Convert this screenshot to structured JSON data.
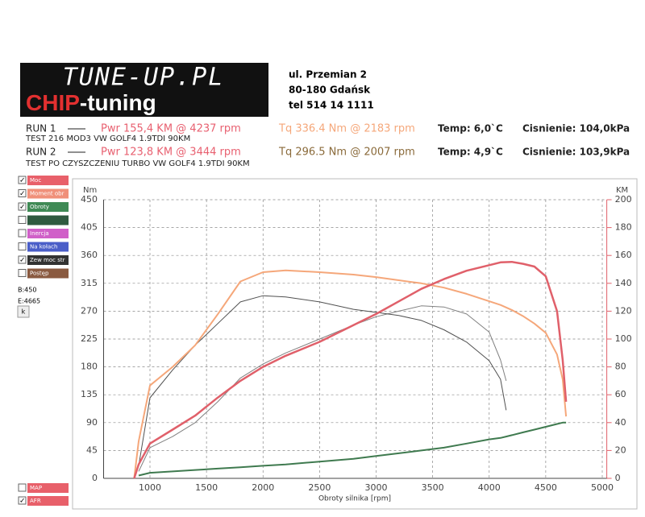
{
  "header": {
    "logo_top": "TUNE-UP.PL",
    "logo_chip": "CHIP",
    "logo_tuning": "-tuning",
    "address": [
      "ul. Przemian 2",
      "80-180 Gdańsk",
      "tel 514 14 1111"
    ]
  },
  "runs": [
    {
      "run": "RUN 1",
      "pwr": "Pwr 155,4 KM @ 4237 rpm",
      "tq": "Tq 336.4 Nm @ 2183 rpm",
      "temp": "Temp: 6,0`C",
      "pressure": "Cisnienie: 104,0kPa",
      "desc": "TEST 216 MOD3 VW GOLF4 1.9TDI 90KM"
    },
    {
      "run": "RUN 2",
      "pwr": "Pwr 123,8 KM @ 3444 rpm",
      "tq": "Tq 296.5 Nm @ 2007 rpm",
      "temp": "Temp: 4,9`C",
      "pressure": "Cisnienie: 103,9kPa",
      "desc": "TEST PO CZYSZCZENIU TURBO VW GOLF4 1.9TDI 90KM"
    }
  ],
  "sidebar": {
    "items": [
      {
        "label": "Moc",
        "color": "#e8606a",
        "checked": true
      },
      {
        "label": "Moment obr",
        "color": "#f0907a",
        "checked": true
      },
      {
        "label": "Obroty",
        "color": "#3f8a55",
        "checked": true
      },
      {
        "color": "#2f5a40",
        "checked": false
      },
      {
        "label": "Inercja",
        "color": "#d060c8",
        "checked": false
      },
      {
        "label": "Na kołach",
        "color": "#4a5ec8",
        "checked": false
      },
      {
        "label": "Zew moc str",
        "color": "#333333",
        "checked": true
      },
      {
        "label": "Postęp",
        "color": "#8a5a40",
        "checked": false
      }
    ],
    "b": "B:450",
    "e": "E:4665",
    "button": "k",
    "bottom": [
      {
        "label": "MAP",
        "color": "#e8606a",
        "checked": false
      },
      {
        "label": "AFR",
        "color": "#e8606a",
        "checked": true
      }
    ]
  },
  "chart_data": {
    "type": "line",
    "ylabel": "Nm",
    "y2label": "KM",
    "xlabel": "Obroty silnika [rpm]",
    "x": [
      860,
      900,
      1000,
      1200,
      1400,
      1600,
      1800,
      2000,
      2200,
      2500,
      2800,
      3000,
      3200,
      3400,
      3600,
      3800,
      4000,
      4100,
      4150,
      4200,
      4300,
      4400,
      4500,
      4600,
      4650,
      4680
    ],
    "xlim": [
      590,
      5040
    ],
    "xticks": [
      1000,
      1500,
      2000,
      2500,
      3000,
      3500,
      4000,
      4500,
      5000
    ],
    "ylim": [
      0,
      450
    ],
    "yticks": [
      0,
      45,
      90,
      135,
      180,
      225,
      270,
      315,
      360,
      405,
      450
    ],
    "y2lim": [
      0,
      200
    ],
    "y2ticks": [
      0,
      20,
      40,
      60,
      80,
      100,
      120,
      140,
      160,
      180,
      200
    ],
    "grid": true,
    "series": [
      {
        "color": "#808080",
        "width": 1,
        "axis": "y2",
        "values": [
          null,
          5,
          22,
          30,
          40,
          55,
          72,
          82,
          90,
          100,
          110,
          116,
          120,
          123.8,
          123,
          118,
          105,
          85,
          70,
          null,
          null,
          null,
          null,
          null,
          null,
          null
        ]
      },
      {
        "color": "#505050",
        "width": 1,
        "values": [
          null,
          20,
          130,
          175,
          215,
          250,
          285,
          295,
          293,
          285,
          273,
          268,
          263,
          255,
          240,
          220,
          190,
          160,
          110,
          null,
          null,
          null,
          null,
          null,
          null,
          null
        ]
      },
      {
        "color": "#3f7a4f",
        "width": 2,
        "axis": "y2",
        "values": [
          null,
          2,
          4,
          5,
          6,
          7,
          8,
          9,
          10,
          12,
          14,
          16,
          18,
          20,
          22,
          25,
          28,
          29,
          30,
          31,
          33,
          35,
          37,
          39,
          40,
          40
        ]
      },
      {
        "color": "#f5a77a",
        "width": 2,
        "values": [
          0,
          60,
          150,
          180,
          215,
          265,
          318,
          333,
          336,
          333,
          329,
          325,
          320,
          315,
          308,
          298,
          286,
          280,
          276,
          272,
          262,
          250,
          235,
          200,
          160,
          100
        ]
      },
      {
        "color": "#e0606a",
        "width": 2.5,
        "axis": "y2",
        "values": [
          0,
          10,
          25,
          35,
          45,
          58,
          70,
          80,
          88,
          98,
          110,
          118,
          127,
          136,
          143,
          149,
          153,
          155,
          155.2,
          155.4,
          154,
          152,
          145,
          120,
          85,
          55
        ]
      }
    ]
  }
}
